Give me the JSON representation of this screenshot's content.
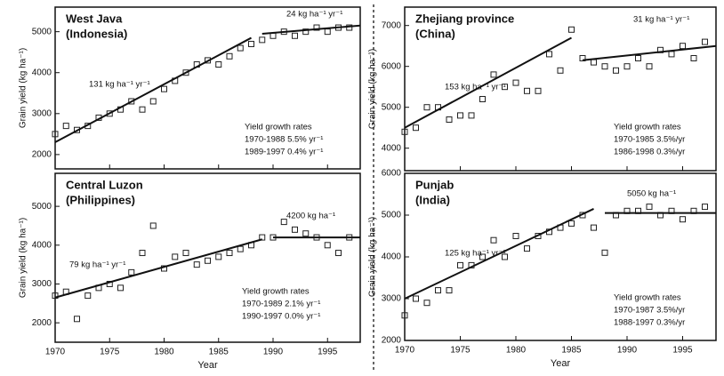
{
  "chart_data": [
    {
      "type": "scatter",
      "title": "West Java",
      "subtitle": "(Indonesia)",
      "ylabel": "Grain yield (kg ha⁻¹)",
      "x": [
        1970,
        1971,
        1972,
        1973,
        1974,
        1975,
        1976,
        1977,
        1978,
        1979,
        1980,
        1981,
        1982,
        1983,
        1984,
        1985,
        1986,
        1987,
        1988,
        1989,
        1990,
        1991,
        1992,
        1993,
        1994,
        1995,
        1996,
        1997
      ],
      "values": [
        2500,
        2700,
        2600,
        2700,
        2900,
        3000,
        3100,
        3300,
        3100,
        3300,
        3600,
        3800,
        4000,
        4200,
        4300,
        4200,
        4400,
        4600,
        4700,
        4800,
        4900,
        5000,
        4900,
        5000,
        5100,
        5000,
        5100,
        5100
      ],
      "trends": [
        {
          "x": [
            1970,
            1988
          ],
          "values": [
            2300,
            4850
          ]
        },
        {
          "x": [
            1989,
            1998
          ],
          "values": [
            4950,
            5150
          ]
        }
      ],
      "annotations": [
        "131 kg ha⁻¹ yr⁻¹",
        "24 kg ha⁻¹ yr⁻¹",
        "Yield growth rates",
        "1970-1988  5.5% yr⁻¹",
        "1989-1997  0.4% yr⁻¹"
      ],
      "xlim": [
        1970,
        1998
      ],
      "ylim": [
        1650,
        5600
      ],
      "xticks": [
        1970,
        1975,
        1980,
        1985,
        1990,
        1995
      ],
      "yticks": [
        2000,
        3000,
        4000,
        5000
      ]
    },
    {
      "type": "scatter",
      "title": "Central Luzon",
      "subtitle": "(Philippines)",
      "ylabel": "Grain yield (kg ha⁻¹)",
      "xlabel": "Year",
      "x": [
        1970,
        1971,
        1972,
        1973,
        1974,
        1975,
        1976,
        1977,
        1978,
        1979,
        1980,
        1981,
        1982,
        1983,
        1984,
        1985,
        1986,
        1987,
        1988,
        1989,
        1990,
        1991,
        1992,
        1993,
        1994,
        1995,
        1996,
        1997
      ],
      "values": [
        2700,
        2800,
        2100,
        2700,
        2900,
        3000,
        2900,
        3300,
        3800,
        4500,
        3400,
        3700,
        3800,
        3500,
        3600,
        3700,
        3800,
        3900,
        4000,
        4200,
        4200,
        4600,
        4400,
        4300,
        4200,
        4000,
        3800,
        4200
      ],
      "trends": [
        {
          "x": [
            1970,
            1989
          ],
          "values": [
            2650,
            4150
          ]
        },
        {
          "x": [
            1990,
            1998
          ],
          "values": [
            4200,
            4200
          ]
        }
      ],
      "annotations": [
        "79 kg ha⁻¹ yr⁻¹",
        "4200 kg ha⁻¹",
        "Yield growth rates",
        "1970-1989  2.1% yr⁻¹",
        "1990-1997  0.0% yr⁻¹"
      ],
      "xlim": [
        1970,
        1998
      ],
      "ylim": [
        1500,
        5850
      ],
      "xticks": [
        1970,
        1975,
        1980,
        1985,
        1990,
        1995
      ],
      "yticks": [
        2000,
        3000,
        4000,
        5000
      ]
    },
    {
      "type": "scatter",
      "title": "Zhejiang province",
      "subtitle": "(China)",
      "ylabel": "Grain yield (kg ha⁻¹)",
      "x": [
        1970,
        1971,
        1972,
        1973,
        1974,
        1975,
        1976,
        1977,
        1978,
        1979,
        1980,
        1981,
        1982,
        1983,
        1984,
        1985,
        1986,
        1987,
        1988,
        1989,
        1990,
        1991,
        1992,
        1993,
        1994,
        1995,
        1996,
        1997
      ],
      "values": [
        4400,
        4500,
        5000,
        5000,
        4700,
        4800,
        4800,
        5200,
        5800,
        5500,
        5600,
        5400,
        5400,
        6300,
        5900,
        6900,
        6200,
        6100,
        6000,
        5900,
        6000,
        6200,
        6000,
        6400,
        6300,
        6500,
        6200,
        6600
      ],
      "trends": [
        {
          "x": [
            1970,
            1985
          ],
          "values": [
            4500,
            6700
          ]
        },
        {
          "x": [
            1986,
            1998
          ],
          "values": [
            6150,
            6500
          ]
        }
      ],
      "annotations": [
        "153 kg ha⁻¹ yr⁻¹",
        "31 kg ha⁻¹ yr⁻¹",
        "Yield growth rates",
        "1970-1985  3.5%/yr",
        "1986-1998  0.3%/yr"
      ],
      "xlim": [
        1970,
        1998
      ],
      "ylim": [
        3450,
        7450
      ],
      "xticks": [
        1970,
        1975,
        1980,
        1985,
        1990,
        1995
      ],
      "yticks": [
        4000,
        5000,
        6000,
        7000
      ]
    },
    {
      "type": "scatter",
      "title": "Punjab",
      "subtitle": "(India)",
      "ylabel": "Grain yield (kg ha⁻¹)",
      "xlabel": "Year",
      "x": [
        1970,
        1971,
        1972,
        1973,
        1974,
        1975,
        1976,
        1977,
        1978,
        1979,
        1980,
        1981,
        1982,
        1983,
        1984,
        1985,
        1986,
        1987,
        1988,
        1989,
        1990,
        1991,
        1992,
        1993,
        1994,
        1995,
        1996,
        1997
      ],
      "values": [
        2600,
        3000,
        2900,
        3200,
        3200,
        3800,
        3800,
        4000,
        4400,
        4000,
        4500,
        4200,
        4500,
        4600,
        4700,
        4800,
        5000,
        4700,
        4100,
        5000,
        5100,
        5100,
        5200,
        5000,
        5100,
        4900,
        5100,
        5200
      ],
      "trends": [
        {
          "x": [
            1970,
            1987
          ],
          "values": [
            3000,
            5150
          ]
        },
        {
          "x": [
            1988,
            1998
          ],
          "values": [
            5050,
            5050
          ]
        }
      ],
      "annotations": [
        "125 kg ha⁻¹ yr⁻¹",
        "5050 kg ha⁻¹",
        "Yield growth rates",
        "1970-1987  3.5%/yr",
        "1988-1997  0.3%/yr"
      ],
      "xlim": [
        1970,
        1998
      ],
      "ylim": [
        2000,
        6000
      ],
      "xticks": [
        1970,
        1975,
        1980,
        1985,
        1990,
        1995
      ],
      "yticks": [
        2000,
        3000,
        4000,
        5000,
        6000
      ]
    }
  ]
}
